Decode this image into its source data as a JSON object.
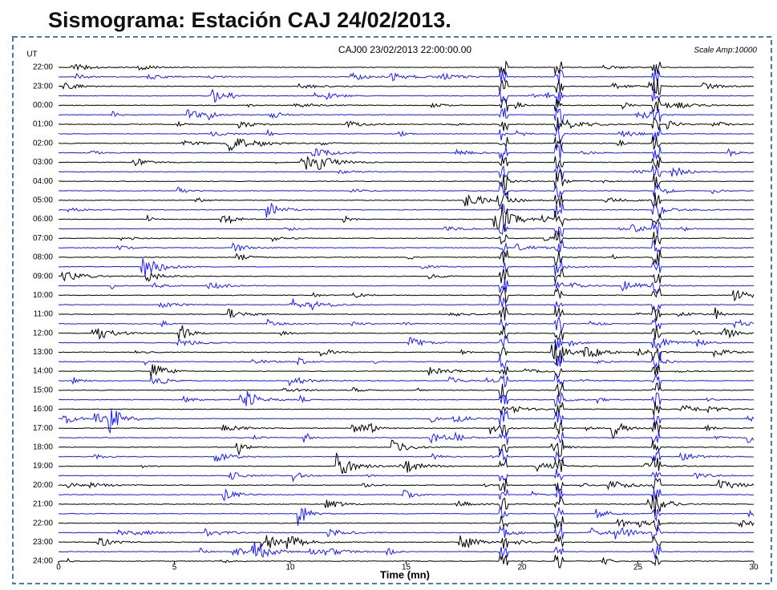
{
  "title": "Sismograma: Estación CAJ 24/02/2013.",
  "plot": {
    "header": "CAJ00 23/02/2013  22:00:00.00",
    "scale": "Scale Amp:10000",
    "y_axis_label": "UT",
    "row_labels": [
      "22:00",
      "23:00",
      "00:00",
      "01:00",
      "02:00",
      "03:00",
      "04:00",
      "05:00",
      "06:00",
      "07:00",
      "08:00",
      "09:00",
      "10:00",
      "11:00",
      "12:00",
      "13:00",
      "14:00",
      "15:00",
      "16:00",
      "17:00",
      "18:00",
      "19:00",
      "20:00",
      "21:00",
      "22:00",
      "23:00",
      "24:00"
    ],
    "x_axis_label": "Time (mn)",
    "xlim": [
      0,
      30
    ],
    "xticks": [
      0,
      5,
      10,
      15,
      20,
      25,
      30
    ]
  }
}
